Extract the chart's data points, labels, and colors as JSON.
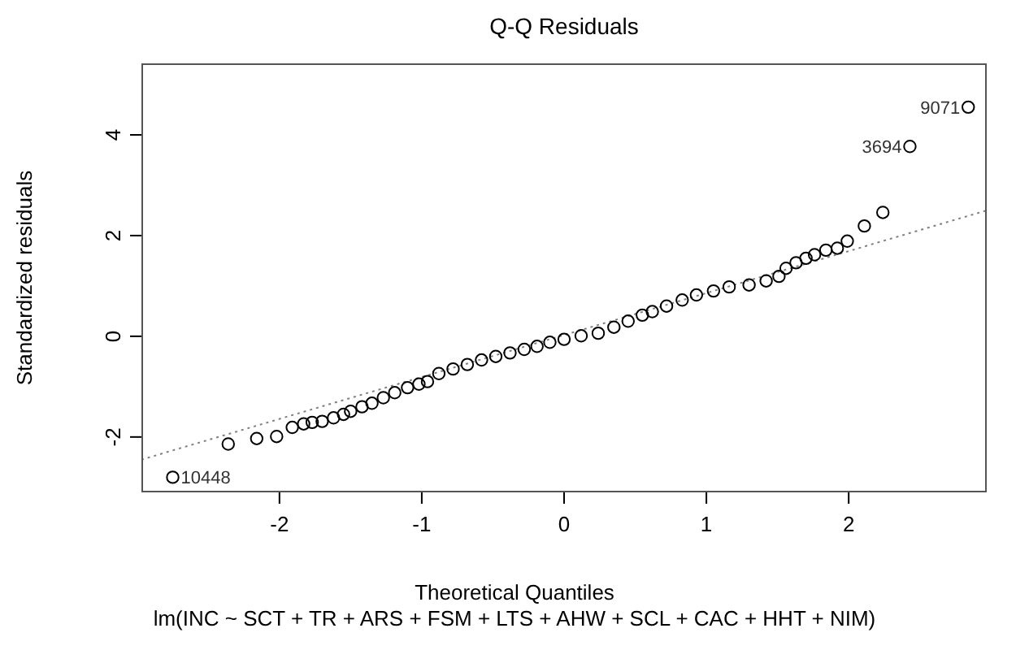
{
  "chart_data": {
    "type": "scatter",
    "title": "Q-Q Residuals",
    "subtitle": "lm(INC ~ SCT + TR + ARS + FSM + LTS + AHW + SCL + CAC + HHT + NIM)",
    "xlabel": "Theoretical Quantiles",
    "ylabel": "Standardized residuals",
    "xlim": [
      -2.97,
      2.97
    ],
    "ylim": [
      -3.1,
      5.42
    ],
    "xticks": [
      -2,
      -1,
      0,
      1,
      2
    ],
    "yticks": [
      -2,
      0,
      2,
      4
    ],
    "series": [
      {
        "marker": "circle",
        "color": "#000000",
        "x": [
          -2.75,
          -2.36,
          -2.16,
          -2.02,
          -1.91,
          -1.83,
          -1.77,
          -1.7,
          -1.62,
          -1.55,
          -1.5,
          -1.42,
          -1.35,
          -1.27,
          -1.19,
          -1.1,
          -1.02,
          -0.96,
          -0.88,
          -0.78,
          -0.68,
          -0.58,
          -0.48,
          -0.38,
          -0.28,
          -0.19,
          -0.1,
          0,
          0.12,
          0.24,
          0.35,
          0.45,
          0.55,
          0.62,
          0.72,
          0.83,
          0.93,
          1.05,
          1.16,
          1.3,
          1.42,
          1.51,
          1.56,
          1.63,
          1.7,
          1.76,
          1.84,
          1.92,
          1.99,
          2.11,
          2.24,
          2.43,
          2.84
        ],
        "values": [
          -2.8,
          -2.14,
          -2.03,
          -1.99,
          -1.81,
          -1.74,
          -1.71,
          -1.69,
          -1.62,
          -1.55,
          -1.49,
          -1.4,
          -1.33,
          -1.22,
          -1.12,
          -1.02,
          -0.95,
          -0.9,
          -0.74,
          -0.65,
          -0.56,
          -0.47,
          -0.4,
          -0.33,
          -0.26,
          -0.2,
          -0.12,
          -0.06,
          0.01,
          0.06,
          0.18,
          0.3,
          0.42,
          0.49,
          0.6,
          0.72,
          0.82,
          0.9,
          0.98,
          1.02,
          1.1,
          1.19,
          1.35,
          1.46,
          1.55,
          1.62,
          1.71,
          1.75,
          1.89,
          2.19,
          2.46,
          3.77,
          4.55
        ]
      },
      {
        "type": "line",
        "color": "#808080",
        "line_style": "dotted",
        "x": [
          -2.97,
          2.97
        ],
        "values": [
          -2.45,
          2.5
        ]
      }
    ],
    "annotations": [
      {
        "text": "10448",
        "x": -2.75,
        "y": -2.8
      },
      {
        "text": "3694",
        "x": 2.43,
        "y": 3.77
      },
      {
        "text": "9071",
        "x": 2.84,
        "y": 4.55
      }
    ]
  }
}
